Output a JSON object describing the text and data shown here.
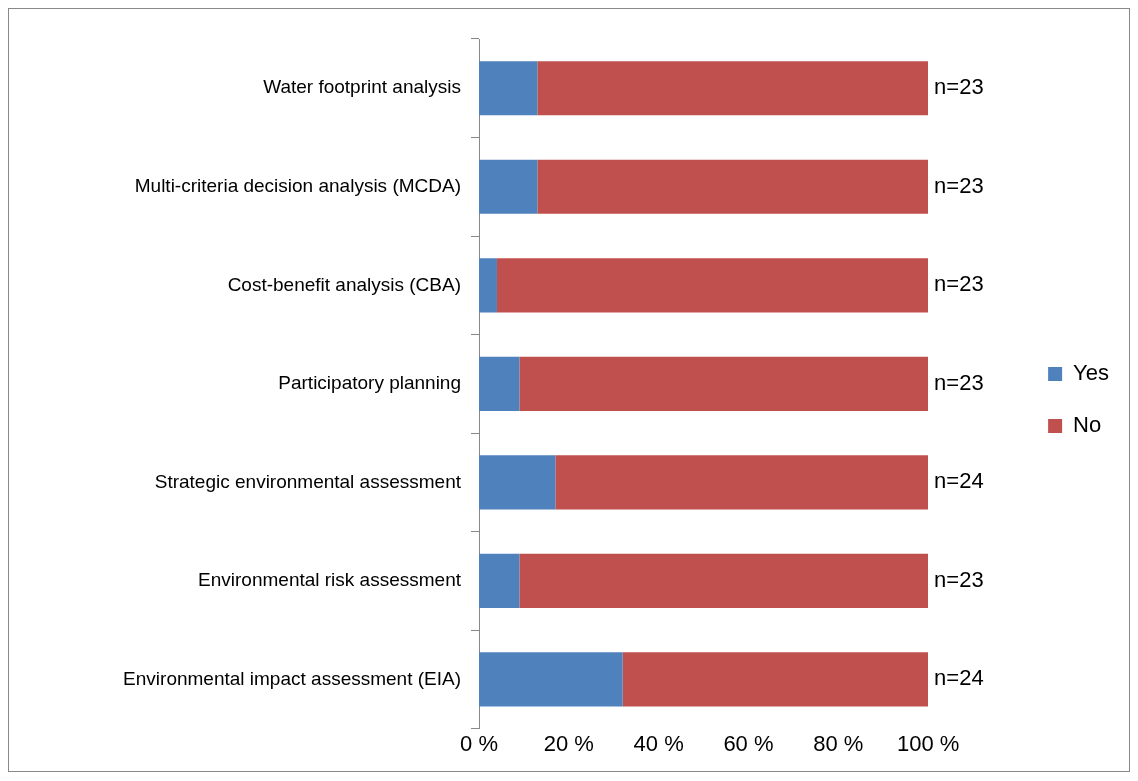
{
  "chart_data": {
    "type": "bar",
    "orientation": "horizontal",
    "stacked": true,
    "categories": [
      "Water footprint analysis",
      "Multi-criteria decision analysis (MCDA)",
      "Cost-benefit analysis (CBA)",
      "Participatory planning",
      "Strategic environmental assessment",
      "Environmental risk assessment",
      "Environmental impact assessment (EIA)"
    ],
    "series": [
      {
        "name": "Yes",
        "color": "#4f81bd",
        "values": [
          13,
          13,
          4,
          9,
          17,
          9,
          32
        ]
      },
      {
        "name": "No",
        "color": "#c0504d",
        "values": [
          87,
          87,
          96,
          91,
          83,
          91,
          68
        ]
      }
    ],
    "xlim": [
      0,
      100
    ],
    "xticks": [
      {
        "value": 0,
        "label": "0 %"
      },
      {
        "value": 20,
        "label": "20 %"
      },
      {
        "value": 40,
        "label": "40 %"
      },
      {
        "value": 60,
        "label": "60 %"
      },
      {
        "value": 80,
        "label": "80 %"
      },
      {
        "value": 100,
        "label": "100 %"
      }
    ],
    "grid": false,
    "legend": "right",
    "annotations": [
      "n=23",
      "n=23",
      "n=23",
      "n=23",
      "n=24",
      "n=23",
      "n=24"
    ]
  }
}
